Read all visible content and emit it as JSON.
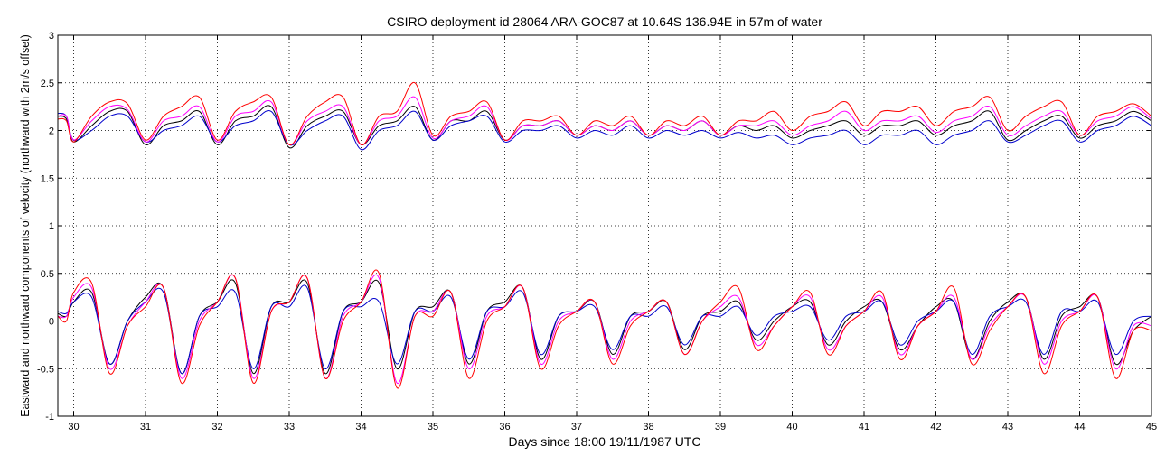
{
  "chart_data": {
    "type": "line",
    "title": "CSIRO deployment id 28064 ARA-GOC87 at 10.64S 136.94E in 57m of water",
    "xlabel": "Days since 18:00 19/11/1987 UTC",
    "ylabel": "Eastward  and northward components of velocity  (northward with 2m/s offset)",
    "xlim": [
      29.78,
      45.0
    ],
    "ylim": [
      -1,
      3
    ],
    "xticks": [
      30,
      31,
      32,
      33,
      34,
      35,
      36,
      37,
      38,
      39,
      40,
      41,
      42,
      43,
      44,
      45
    ],
    "xtick_labels": [
      "30",
      "31",
      "32",
      "33",
      "34",
      "35",
      "36",
      "37",
      "38",
      "39",
      "40",
      "41",
      "42",
      "43",
      "44",
      "45"
    ],
    "yticks": [
      -1,
      -0.5,
      0,
      0.5,
      1,
      1.5,
      2,
      2.5,
      3
    ],
    "ytick_labels": [
      "-1",
      "-0.5",
      "0",
      "0.5",
      "1",
      "1.5",
      "2",
      "2.5",
      "3"
    ],
    "grid": true,
    "colors": {
      "black": "#000000",
      "blue": "#0000cc",
      "magenta": "#ff00ff",
      "red": "#ff0000"
    },
    "x": [
      29.78,
      29.9,
      30.0,
      30.25,
      30.5,
      30.75,
      31.0,
      31.25,
      31.5,
      31.75,
      32.0,
      32.25,
      32.5,
      32.75,
      33.0,
      33.25,
      33.5,
      33.75,
      34.0,
      34.25,
      34.5,
      34.75,
      35.0,
      35.25,
      35.5,
      35.75,
      36.0,
      36.25,
      36.5,
      36.75,
      37.0,
      37.25,
      37.5,
      37.75,
      38.0,
      38.25,
      38.5,
      38.75,
      39.0,
      39.25,
      39.5,
      39.75,
      40.0,
      40.25,
      40.5,
      40.75,
      41.0,
      41.25,
      41.5,
      41.75,
      42.0,
      42.25,
      42.5,
      42.75,
      43.0,
      43.25,
      43.5,
      43.75,
      44.0,
      44.25,
      44.5,
      44.75,
      45.0
    ],
    "series": [
      {
        "name": "black-eastward",
        "color": "black",
        "values": [
          0.08,
          0.05,
          0.2,
          0.3,
          -0.45,
          0.0,
          0.25,
          0.35,
          -0.55,
          0.05,
          0.2,
          0.4,
          -0.55,
          0.15,
          0.2,
          0.4,
          -0.55,
          0.1,
          0.2,
          0.4,
          -0.5,
          0.1,
          0.15,
          0.3,
          -0.45,
          0.1,
          0.2,
          0.35,
          -0.4,
          0.05,
          0.1,
          0.2,
          -0.35,
          0.05,
          0.1,
          0.2,
          -0.3,
          0.05,
          0.1,
          0.2,
          -0.2,
          0.0,
          0.15,
          0.2,
          -0.25,
          0.0,
          0.15,
          0.2,
          -0.3,
          -0.05,
          0.15,
          0.2,
          -0.4,
          0.0,
          0.2,
          0.25,
          -0.4,
          0.05,
          0.15,
          0.25,
          -0.45,
          -0.1,
          0.05
        ]
      },
      {
        "name": "blue-eastward",
        "color": "blue",
        "values": [
          0.1,
          0.08,
          0.2,
          0.25,
          -0.45,
          0.0,
          0.2,
          0.3,
          -0.55,
          0.05,
          0.15,
          0.3,
          -0.5,
          0.15,
          0.15,
          0.35,
          -0.5,
          0.1,
          0.15,
          0.2,
          -0.45,
          0.1,
          0.1,
          0.25,
          -0.4,
          0.1,
          0.15,
          0.3,
          -0.35,
          0.05,
          0.1,
          0.15,
          -0.3,
          0.05,
          0.05,
          0.15,
          -0.25,
          0.05,
          0.05,
          0.15,
          -0.15,
          0.05,
          0.1,
          0.15,
          -0.2,
          0.05,
          0.1,
          0.2,
          -0.25,
          0.0,
          0.1,
          0.2,
          -0.35,
          0.05,
          0.15,
          0.2,
          -0.35,
          0.1,
          0.1,
          0.2,
          -0.35,
          0.0,
          0.05
        ]
      },
      {
        "name": "magenta-eastward",
        "color": "magenta",
        "values": [
          0.05,
          0.05,
          0.25,
          0.35,
          -0.5,
          -0.05,
          0.2,
          0.35,
          -0.6,
          0.0,
          0.2,
          0.45,
          -0.6,
          0.1,
          0.2,
          0.45,
          -0.6,
          0.05,
          0.2,
          0.45,
          -0.65,
          0.05,
          0.1,
          0.3,
          -0.5,
          0.05,
          0.15,
          0.35,
          -0.45,
          0.0,
          0.1,
          0.2,
          -0.4,
          0.0,
          0.1,
          0.2,
          -0.35,
          0.0,
          0.15,
          0.25,
          -0.25,
          -0.05,
          0.15,
          0.25,
          -0.3,
          -0.05,
          0.1,
          0.25,
          -0.35,
          -0.05,
          0.1,
          0.25,
          -0.4,
          -0.05,
          0.15,
          0.25,
          -0.45,
          0.0,
          0.1,
          0.25,
          -0.5,
          -0.05,
          -0.05
        ]
      },
      {
        "name": "red-eastward",
        "color": "red",
        "values": [
          0.05,
          0.0,
          0.3,
          0.4,
          -0.55,
          -0.05,
          0.15,
          0.35,
          -0.65,
          -0.05,
          0.2,
          0.45,
          -0.65,
          0.1,
          0.2,
          0.45,
          -0.6,
          0.0,
          0.2,
          0.5,
          -0.7,
          0.05,
          0.05,
          0.3,
          -0.6,
          0.0,
          0.15,
          0.35,
          -0.5,
          -0.05,
          0.1,
          0.2,
          -0.45,
          -0.05,
          0.1,
          0.2,
          -0.35,
          0.0,
          0.2,
          0.35,
          -0.3,
          -0.05,
          0.15,
          0.3,
          -0.35,
          -0.05,
          0.1,
          0.3,
          -0.4,
          -0.05,
          0.1,
          0.35,
          -0.45,
          -0.1,
          0.15,
          0.25,
          -0.55,
          -0.05,
          0.1,
          0.25,
          -0.6,
          -0.1,
          -0.1
        ]
      },
      {
        "name": "black-northward",
        "color": "black",
        "values": [
          2.15,
          2.12,
          1.88,
          2.05,
          2.2,
          2.2,
          1.85,
          2.05,
          2.1,
          2.2,
          1.85,
          2.1,
          2.15,
          2.25,
          1.82,
          2.05,
          2.15,
          2.2,
          1.85,
          2.05,
          2.1,
          2.25,
          1.9,
          2.1,
          2.1,
          2.2,
          1.9,
          2.05,
          2.05,
          2.1,
          1.95,
          2.05,
          2.0,
          2.1,
          1.95,
          2.05,
          2.0,
          2.1,
          1.95,
          2.05,
          2.0,
          2.05,
          1.92,
          2.0,
          2.05,
          2.1,
          1.95,
          2.05,
          2.05,
          2.1,
          1.95,
          2.05,
          2.1,
          2.2,
          1.9,
          2.0,
          2.1,
          2.15,
          1.92,
          2.05,
          2.1,
          2.2,
          2.1
        ]
      },
      {
        "name": "blue-northward",
        "color": "blue",
        "values": [
          2.18,
          2.15,
          1.9,
          2.0,
          2.15,
          2.15,
          1.88,
          2.0,
          2.05,
          2.15,
          1.88,
          2.05,
          2.1,
          2.2,
          1.85,
          2.0,
          2.1,
          2.15,
          1.8,
          2.0,
          2.05,
          2.2,
          1.9,
          2.05,
          2.1,
          2.15,
          1.88,
          2.0,
          2.0,
          2.05,
          1.92,
          2.0,
          1.95,
          2.05,
          1.92,
          2.0,
          1.95,
          2.0,
          1.92,
          1.98,
          1.92,
          1.95,
          1.85,
          1.92,
          1.95,
          2.0,
          1.85,
          1.95,
          1.95,
          2.0,
          1.85,
          1.95,
          2.0,
          2.1,
          1.88,
          1.95,
          2.05,
          2.1,
          1.88,
          2.0,
          2.05,
          2.15,
          2.05
        ]
      },
      {
        "name": "magenta-northward",
        "color": "magenta",
        "values": [
          2.15,
          2.15,
          1.9,
          2.1,
          2.25,
          2.22,
          1.88,
          2.1,
          2.15,
          2.25,
          1.88,
          2.15,
          2.2,
          2.3,
          1.85,
          2.1,
          2.2,
          2.25,
          1.85,
          2.1,
          2.15,
          2.35,
          1.92,
          2.1,
          2.15,
          2.25,
          1.9,
          2.05,
          2.05,
          2.1,
          1.95,
          2.05,
          2.0,
          2.1,
          1.95,
          2.05,
          2.0,
          2.1,
          1.95,
          2.05,
          2.05,
          2.1,
          1.95,
          2.05,
          2.1,
          2.2,
          2.0,
          2.1,
          2.1,
          2.15,
          1.98,
          2.1,
          2.15,
          2.25,
          1.95,
          2.05,
          2.15,
          2.2,
          1.95,
          2.1,
          2.15,
          2.25,
          2.12
        ]
      },
      {
        "name": "red-northward",
        "color": "red",
        "values": [
          2.12,
          2.1,
          1.88,
          2.15,
          2.3,
          2.28,
          1.9,
          2.15,
          2.25,
          2.35,
          1.9,
          2.2,
          2.3,
          2.35,
          1.85,
          2.15,
          2.3,
          2.35,
          1.85,
          2.15,
          2.2,
          2.5,
          1.95,
          2.15,
          2.2,
          2.3,
          1.9,
          2.1,
          2.1,
          2.15,
          1.95,
          2.1,
          2.05,
          2.15,
          1.95,
          2.1,
          2.05,
          2.15,
          1.95,
          2.1,
          2.1,
          2.2,
          2.0,
          2.15,
          2.2,
          2.3,
          2.05,
          2.2,
          2.2,
          2.25,
          2.05,
          2.2,
          2.25,
          2.35,
          2.0,
          2.15,
          2.25,
          2.3,
          1.95,
          2.15,
          2.2,
          2.28,
          2.15
        ]
      }
    ]
  }
}
